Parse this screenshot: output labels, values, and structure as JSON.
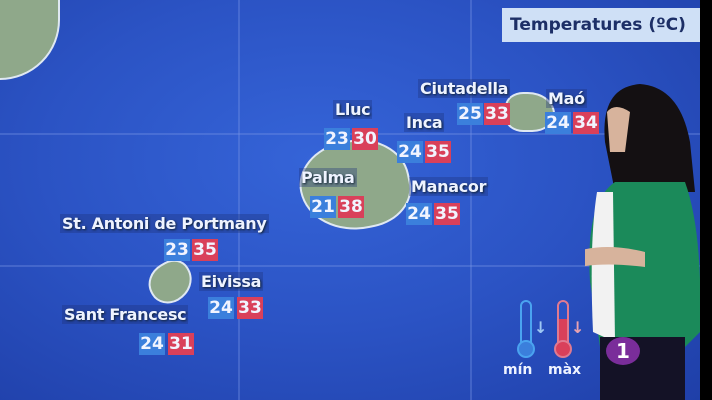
{
  "title": "Temperatures (ºC)",
  "colors": {
    "min": "#3b7fdc",
    "max": "#d9405a",
    "background": "#2b53c4"
  },
  "cities": [
    {
      "name": "Lluc",
      "min": "23",
      "max": "30"
    },
    {
      "name": "Inca",
      "min": "24",
      "max": "35"
    },
    {
      "name": "Ciutadella",
      "min": "25",
      "max": "33"
    },
    {
      "name": "Maó",
      "min": "24",
      "max": "34"
    },
    {
      "name": "Palma",
      "min": "21",
      "max": "38"
    },
    {
      "name": "Manacor",
      "min": "24",
      "max": "35"
    },
    {
      "name": "St. Antoni de Portmany",
      "min": "23",
      "max": "35"
    },
    {
      "name": "Eivissa",
      "min": "24",
      "max": "33"
    },
    {
      "name": "Sant Francesc",
      "min": "24",
      "max": "31"
    }
  ],
  "legend": {
    "min_label": "mín",
    "max_label": "màx",
    "min_icon": "thermometer-down-icon",
    "max_icon": "thermometer-up-icon"
  },
  "channel_logo": "1"
}
